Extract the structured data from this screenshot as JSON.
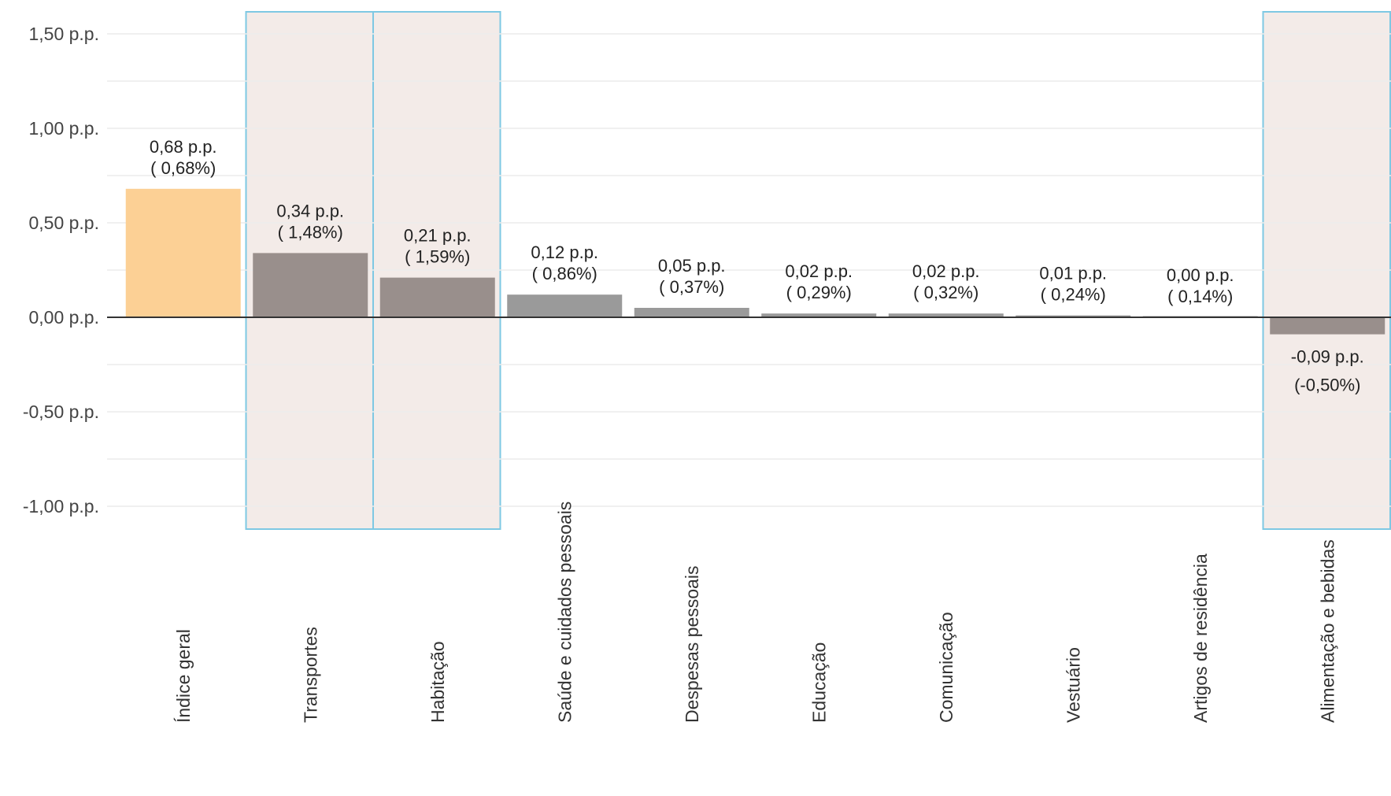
{
  "chart_data": {
    "type": "bar",
    "title": "",
    "xlabel": "",
    "ylabel": "",
    "ylim": [
      -1.1,
      1.55
    ],
    "yticks": [
      1.5,
      1.0,
      0.5,
      0.0,
      -0.5,
      -1.0
    ],
    "ytick_labels": [
      "1,50 p.p.",
      "1,00 p.p.",
      "0,50 p.p.",
      "0,00 p.p.",
      "-0,50 p.p.",
      "-1,00 p.p."
    ],
    "grid": true,
    "legend": "none",
    "categories": [
      "Índice geral",
      "Transportes",
      "Habitação",
      "Saúde e cuidados pessoais",
      "Despesas pessoais",
      "Educação",
      "Comunicação",
      "Vestuário",
      "Artigos de residência",
      "Alimentação e bebidas"
    ],
    "values": [
      0.68,
      0.34,
      0.21,
      0.12,
      0.05,
      0.02,
      0.02,
      0.01,
      0.0,
      -0.09
    ],
    "percent_changes": [
      0.68,
      1.48,
      1.59,
      0.86,
      0.37,
      0.29,
      0.32,
      0.24,
      0.14,
      -0.5
    ],
    "label_line1": [
      "0,68 p.p.",
      "0,34 p.p.",
      "0,21 p.p.",
      "0,12 p.p.",
      "0,05 p.p.",
      "0,02 p.p.",
      "0,02 p.p.",
      "0,01 p.p.",
      "0,00 p.p.",
      "-0,09 p.p."
    ],
    "label_line2": [
      "( 0,68%)",
      "( 1,48%)",
      "( 1,59%)",
      "( 0,86%)",
      "( 0,37%)",
      "( 0,29%)",
      "( 0,32%)",
      "( 0,24%)",
      "( 0,14%)",
      "(-0,50%)"
    ],
    "highlighted": [
      "Transportes",
      "Habitação",
      "Alimentação e bebidas"
    ],
    "colors": {
      "index_bar": "#fcd095",
      "highlighted_bar": "#998f8c",
      "regular_bar": "#9a9a9a",
      "highlight_fill": "#f3ebe8",
      "highlight_border": "#7ec8e3",
      "zero_line": "#333333",
      "grid": "#ececec"
    }
  }
}
